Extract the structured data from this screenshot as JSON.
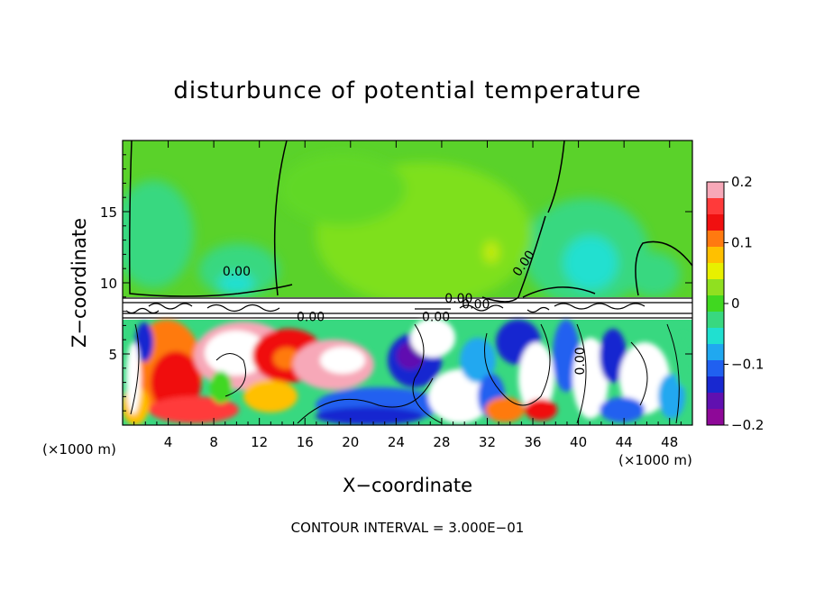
{
  "chart_data": {
    "type": "heatmap",
    "title": "disturbunce of potential temperature",
    "xlabel": "X−coordinate",
    "ylabel": "Z−coordinate",
    "x_unit": "(×1000 m)",
    "xlim": [
      0,
      50
    ],
    "ylim": [
      0,
      20
    ],
    "x_ticks": [
      4,
      8,
      12,
      16,
      20,
      24,
      28,
      32,
      36,
      40,
      44,
      48
    ],
    "y_ticks": [
      5,
      10,
      15
    ],
    "colorbar": {
      "range": [
        -0.2,
        0.2
      ],
      "ticks": [
        "0.2",
        "0.1",
        "0",
        "−0.1",
        "−0.2"
      ],
      "colors": [
        "#f7a8b8",
        "#ff3a3a",
        "#f01010",
        "#ff7a10",
        "#ffc000",
        "#e8f000",
        "#90e020",
        "#40d820",
        "#38d880",
        "#20e0d0",
        "#20a8f0",
        "#2060f0",
        "#1828d0",
        "#6010b0",
        "#8e0898"
      ]
    },
    "contour_labels": [
      "0.00",
      "0.00",
      "0.00",
      "0.00",
      "0.00",
      "0.00",
      "0.00"
    ],
    "footer": "CONTOUR INTERVAL = 3.000E−01"
  }
}
